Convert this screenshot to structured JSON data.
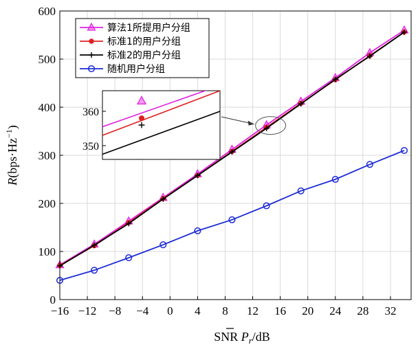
{
  "chart_data": {
    "type": "line",
    "title": "",
    "xlabel_parts": {
      "main": "SNR ",
      "symbol": "P",
      "sub": "r",
      "unit": "/dB"
    },
    "ylabel_parts": {
      "main": "R",
      "unit": "(bps·Hz",
      "sup": "−1",
      "close": ")"
    },
    "xlim": [
      -16,
      35
    ],
    "ylim": [
      0,
      600
    ],
    "xticks": [
      -16,
      -12,
      -8,
      -4,
      0,
      4,
      8,
      12,
      16,
      20,
      24,
      28,
      32
    ],
    "xtick_labels": [
      "−16",
      "−12",
      "−8",
      "−4",
      "0",
      "4",
      "8",
      "12",
      "16",
      "20",
      "24",
      "28",
      "32"
    ],
    "yticks": [
      0,
      100,
      200,
      300,
      400,
      500,
      600
    ],
    "ytick_labels": [
      "0",
      "100",
      "200",
      "300",
      "400",
      "500",
      "600"
    ],
    "grid": true,
    "legend_position": "top-left",
    "x": [
      -16,
      -11,
      -6,
      -1,
      4,
      9,
      14,
      19,
      24,
      29,
      34
    ],
    "series": [
      {
        "name": "算法1所提用户分组",
        "color": "#e020e0",
        "marker": "triangle",
        "values": [
          72,
          115,
          163,
          212,
          261,
          312,
          363,
          412,
          461,
          513,
          560
        ]
      },
      {
        "name": "标准1的用户分组",
        "color": "#e02020",
        "marker": "dot",
        "values": [
          71,
          112,
          160,
          210,
          258,
          308,
          358,
          408,
          457,
          507,
          556
        ]
      },
      {
        "name": "标准2的用户分组",
        "color": "#000000",
        "marker": "plus",
        "values": [
          70,
          113,
          158,
          209,
          258,
          307,
          356,
          407,
          458,
          506,
          556
        ]
      },
      {
        "name": "随机用户分组",
        "color": "#1c2bd6",
        "marker": "circle",
        "values": [
          40,
          61,
          87,
          114,
          143,
          166,
          195,
          226,
          250,
          281,
          310
        ]
      }
    ],
    "inset": {
      "yticks": [
        350,
        360
      ],
      "ytick_labels": [
        "350",
        "360"
      ],
      "xlim": [
        13,
        16
      ],
      "ylim": [
        346,
        366
      ],
      "marker_x": 14,
      "series_values": [
        {
          "values": [
            355.5,
            367.5
          ],
          "marker": 363
        },
        {
          "values": [
            353.0,
            366.0
          ],
          "marker": 358
        },
        {
          "values": [
            347.5,
            360.0
          ],
          "marker": 356
        }
      ]
    }
  }
}
